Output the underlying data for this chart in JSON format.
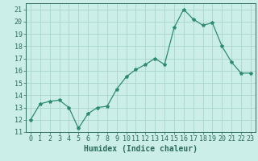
{
  "x": [
    0,
    1,
    2,
    3,
    4,
    5,
    6,
    7,
    8,
    9,
    10,
    11,
    12,
    13,
    14,
    15,
    16,
    17,
    18,
    19,
    20,
    21,
    22,
    23
  ],
  "y": [
    12,
    13.3,
    13.5,
    13.6,
    13.0,
    11.3,
    12.5,
    13.0,
    13.1,
    14.5,
    15.5,
    16.1,
    16.5,
    17.0,
    16.5,
    19.5,
    21.0,
    20.2,
    19.7,
    19.9,
    18.0,
    16.7,
    15.8,
    15.8
  ],
  "line_color": "#2d8b72",
  "marker": "*",
  "marker_size": 3,
  "bg_color": "#cceee8",
  "grid_color": "#aad4cc",
  "xlabel": "Humidex (Indice chaleur)",
  "xlim": [
    -0.5,
    23.5
  ],
  "ylim": [
    11,
    21.5
  ],
  "yticks": [
    11,
    12,
    13,
    14,
    15,
    16,
    17,
    18,
    19,
    20,
    21
  ],
  "xticks": [
    0,
    1,
    2,
    3,
    4,
    5,
    6,
    7,
    8,
    9,
    10,
    11,
    12,
    13,
    14,
    15,
    16,
    17,
    18,
    19,
    20,
    21,
    22,
    23
  ],
  "tick_color": "#2d6b5a",
  "axis_color": "#2d6b5a",
  "xlabel_fontsize": 7,
  "tick_fontsize": 6
}
